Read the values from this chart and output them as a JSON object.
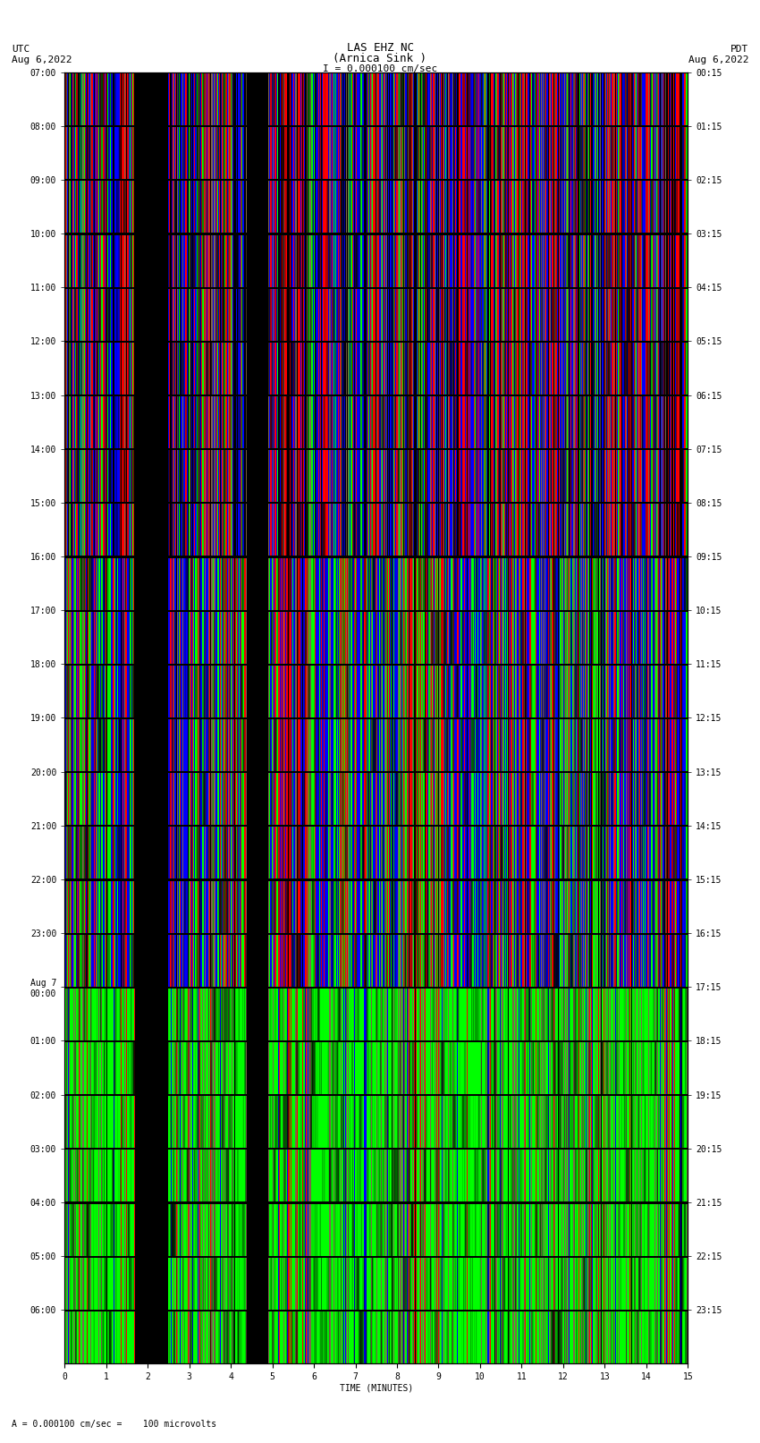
{
  "title_line1": "LAS EHZ NC",
  "title_line2": "(Arnica Sink )",
  "scale_text": "I = 0.000100 cm/sec",
  "left_label_line1": "UTC",
  "left_label_line2": "Aug 6,2022",
  "right_label_line1": "PDT",
  "right_label_line2": "Aug 6,2022",
  "bottom_label": "A = 0.000100 cm/sec =    100 microvolts",
  "xlabel": "TIME (MINUTES)",
  "utc_times": [
    "07:00",
    "08:00",
    "09:00",
    "10:00",
    "11:00",
    "12:00",
    "13:00",
    "14:00",
    "15:00",
    "16:00",
    "17:00",
    "18:00",
    "19:00",
    "20:00",
    "21:00",
    "22:00",
    "23:00",
    "Aug 7\n00:00",
    "01:00",
    "02:00",
    "03:00",
    "04:00",
    "05:00",
    "06:00"
  ],
  "pdt_times": [
    "00:15",
    "01:15",
    "02:15",
    "03:15",
    "04:15",
    "05:15",
    "06:15",
    "07:15",
    "08:15",
    "09:15",
    "10:15",
    "11:15",
    "12:15",
    "13:15",
    "14:15",
    "15:15",
    "16:15",
    "17:15",
    "18:15",
    "19:15",
    "20:15",
    "21:15",
    "22:15",
    "23:15"
  ],
  "x_ticks": [
    0,
    1,
    2,
    3,
    4,
    5,
    6,
    7,
    8,
    9,
    10,
    11,
    12,
    13,
    14,
    15
  ],
  "fig_bg": "#ffffff",
  "n_traces": 24,
  "seed": 42
}
